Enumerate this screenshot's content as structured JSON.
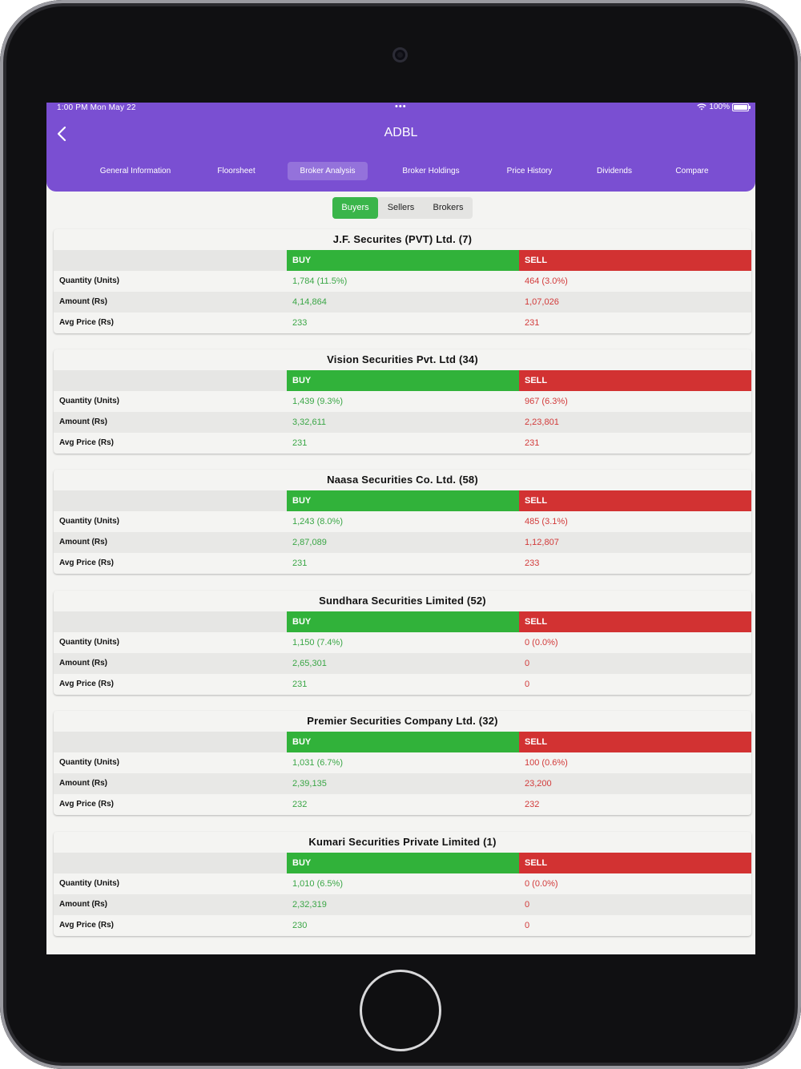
{
  "status_bar": {
    "time": "1:00 PM   Mon May 22",
    "dots": "•••",
    "battery": "100%"
  },
  "header": {
    "title": "ADBL"
  },
  "tabs": [
    {
      "label": "General Information"
    },
    {
      "label": "Floorsheet"
    },
    {
      "label": "Broker Analysis"
    },
    {
      "label": "Broker Holdings"
    },
    {
      "label": "Price History"
    },
    {
      "label": "Dividends"
    },
    {
      "label": "Compare"
    }
  ],
  "segment": {
    "buyers": "Buyers",
    "sellers": "Sellers",
    "brokers": "Brokers"
  },
  "labels": {
    "buy": "BUY",
    "sell": "SELL",
    "quantity": "Quantity (Units)",
    "amount": "Amount (Rs)",
    "avg_price": "Avg Price (Rs)"
  },
  "brokers": [
    {
      "name": "J.F. Securites (PVT) Ltd. (7)",
      "buy_qty": "1,784 (11.5%)",
      "sell_qty": "464 (3.0%)",
      "buy_amount": "4,14,864",
      "sell_amount": "1,07,026",
      "buy_avg": "233",
      "sell_avg": "231"
    },
    {
      "name": "Vision Securities Pvt. Ltd (34)",
      "buy_qty": "1,439 (9.3%)",
      "sell_qty": "967 (6.3%)",
      "buy_amount": "3,32,611",
      "sell_amount": "2,23,801",
      "buy_avg": "231",
      "sell_avg": "231"
    },
    {
      "name": "Naasa Securities Co. Ltd. (58)",
      "buy_qty": "1,243 (8.0%)",
      "sell_qty": "485 (3.1%)",
      "buy_amount": "2,87,089",
      "sell_amount": "1,12,807",
      "buy_avg": "231",
      "sell_avg": "233"
    },
    {
      "name": "Sundhara Securities Limited (52)",
      "buy_qty": "1,150 (7.4%)",
      "sell_qty": "0 (0.0%)",
      "buy_amount": "2,65,301",
      "sell_amount": "0",
      "buy_avg": "231",
      "sell_avg": "0"
    },
    {
      "name": "Premier Securities Company Ltd. (32)",
      "buy_qty": "1,031 (6.7%)",
      "sell_qty": "100 (0.6%)",
      "buy_amount": "2,39,135",
      "sell_amount": "23,200",
      "buy_avg": "232",
      "sell_avg": "232"
    },
    {
      "name": "Kumari Securities Private Limited (1)",
      "buy_qty": "1,010 (6.5%)",
      "sell_qty": "0 (0.0%)",
      "buy_amount": "2,32,319",
      "sell_amount": "0",
      "buy_avg": "230",
      "sell_avg": "0"
    }
  ]
}
